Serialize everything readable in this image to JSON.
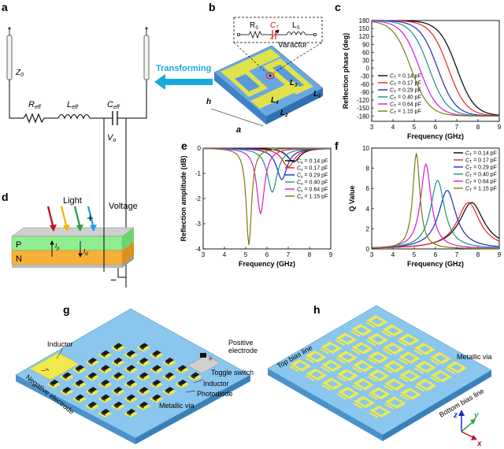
{
  "panels": {
    "a": "a",
    "b": "b",
    "c": "c",
    "d": "d",
    "e": "e",
    "f": "f",
    "g": "g",
    "h": "h"
  },
  "circuit": {
    "z0": "Z",
    "z0_sub": "0",
    "r_eff": "R",
    "r_eff_sub": "eff",
    "l_eff": "L",
    "l_eff_sub": "eff",
    "c_eff": "C",
    "c_eff_sub": "eff",
    "v0": "V",
    "v0_sub": "o",
    "transforming": "Transforming"
  },
  "unit_cell": {
    "rs": "R",
    "rs_sub": "S",
    "ct": "C",
    "ct_sub": "T",
    "ls": "L",
    "ls_sub": "S",
    "varactor": "Varactor",
    "l1": "L",
    "l1_sub": "1",
    "l2": "L",
    "l2_sub": "2",
    "l3": "L",
    "l3_sub": "3",
    "l4": "L",
    "l4_sub": "4",
    "h": "h",
    "a": "a"
  },
  "photodiode": {
    "light": "Light",
    "voltage": "Voltage",
    "plus": "+",
    "minus": "−",
    "p": "P",
    "n": "N",
    "ip": "I",
    "ip_sub": "p",
    "id": "I",
    "id_sub": "d"
  },
  "panel_g": {
    "inductor_left": "Inductor",
    "negative_electrode": "Negative electrode",
    "positive_electrode_1": "Positive",
    "positive_electrode_2": "electrode",
    "toggle_switch": "Toggle switch",
    "inductor_right": "Inductor",
    "photodiode": "Photodiode",
    "metallic_via": "Metallic via"
  },
  "panel_h": {
    "top_bias": "Top bias line",
    "bottom_bias": "Bottom bias line",
    "metallic_via": "Metallic via",
    "z": "z",
    "y": "y",
    "x": "x"
  },
  "legend_prefix": "C",
  "legend_sub_c": "T",
  "legend_sub_e": "x",
  "legend_suffix": " = ",
  "chart_data": [
    {
      "id": "c",
      "type": "line",
      "xlabel": "Frequency (GHz)",
      "ylabel": "Reflection phase (deg)",
      "xlim": [
        3,
        9
      ],
      "ylim": [
        -200,
        180
      ],
      "xticks": [
        3,
        4,
        5,
        6,
        7,
        8,
        9
      ],
      "yticks": [
        -180,
        -150,
        -120,
        -90,
        -60,
        -30,
        0,
        30,
        60,
        90,
        120,
        150,
        180
      ],
      "legend_position": "bottom-left",
      "series": [
        {
          "name": "0.14 pF",
          "color": "#000000",
          "f0": 7.0
        },
        {
          "name": "0.17 pF",
          "color": "#e8232a",
          "f0": 6.6
        },
        {
          "name": "0.29 pF",
          "color": "#1a2bc4",
          "f0": 6.1
        },
        {
          "name": "0.40 pF",
          "color": "#18918a",
          "f0": 5.7
        },
        {
          "name": "0.64 pF",
          "color": "#d81ad0",
          "f0": 5.25
        },
        {
          "name": "1.15 pF",
          "color": "#7d7a10",
          "f0": 4.85
        }
      ]
    },
    {
      "id": "e",
      "type": "line",
      "xlabel": "Frequency (GHz)",
      "ylabel": "Reflection amplitude (dB)",
      "xlim": [
        3,
        9
      ],
      "ylim": [
        -4,
        0
      ],
      "xticks": [
        3,
        4,
        5,
        6,
        7,
        8,
        9
      ],
      "yticks": [
        -4,
        -3,
        -2,
        -1,
        0
      ],
      "legend_position": "right",
      "series": [
        {
          "name": "0.14 pF",
          "color": "#000000",
          "f0": 7.25,
          "depth": 0.55,
          "width": 0.35
        },
        {
          "name": "0.17 pF",
          "color": "#e8232a",
          "f0": 7.0,
          "depth": 0.75,
          "width": 0.35
        },
        {
          "name": "0.29 pF",
          "color": "#1a2bc4",
          "f0": 6.7,
          "depth": 1.25,
          "width": 0.3
        },
        {
          "name": "0.40 pF",
          "color": "#18918a",
          "f0": 6.25,
          "depth": 1.75,
          "width": 0.28
        },
        {
          "name": "0.64 pF",
          "color": "#d81ad0",
          "f0": 5.7,
          "depth": 2.6,
          "width": 0.22
        },
        {
          "name": "1.15 pF",
          "color": "#7d7a10",
          "f0": 5.15,
          "depth": 3.85,
          "width": 0.15
        }
      ]
    },
    {
      "id": "f",
      "type": "line",
      "xlabel": "Frequency (GHz)",
      "ylabel": "Q Value",
      "xlim": [
        3,
        9
      ],
      "ylim": [
        0,
        10
      ],
      "xticks": [
        3,
        4,
        5,
        6,
        7,
        8,
        9
      ],
      "yticks": [
        0,
        2,
        4,
        6,
        8,
        10
      ],
      "legend_position": "top-right",
      "series": [
        {
          "name": "0.14 pF",
          "color": "#000000",
          "f0": 7.7,
          "peak": 4.6,
          "width": 0.7
        },
        {
          "name": "0.17 pF",
          "color": "#e8232a",
          "f0": 7.55,
          "peak": 4.6,
          "width": 0.65
        },
        {
          "name": "0.29 pF",
          "color": "#1a2bc4",
          "f0": 6.55,
          "peak": 5.8,
          "width": 0.5
        },
        {
          "name": "0.40 pF",
          "color": "#18918a",
          "f0": 6.1,
          "peak": 6.8,
          "width": 0.4
        },
        {
          "name": "0.64 pF",
          "color": "#d81ad0",
          "f0": 5.55,
          "peak": 8.4,
          "width": 0.3
        },
        {
          "name": "1.15 pF",
          "color": "#7d7a10",
          "f0": 5.1,
          "peak": 9.5,
          "width": 0.2
        }
      ]
    }
  ]
}
